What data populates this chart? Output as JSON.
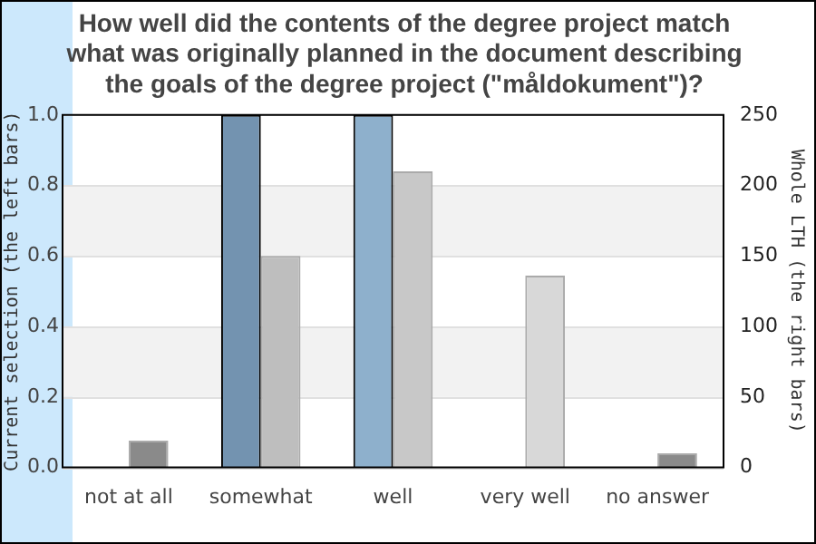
{
  "chart_data": {
    "type": "bar",
    "title": "How well did the contents of the degree project match what was originally planned in the document describing the goals of the degree project (\"måldokument\")?",
    "ylabel": "Current selection (the left bars)",
    "y2label": "Whole LTH (the right bars)",
    "categories": [
      "not at all",
      "somewhat",
      "well",
      "very well",
      "no answer"
    ],
    "series": [
      {
        "colors": [
          "#7393b0",
          "#7393b0",
          "#8eb0cc",
          "#8eb0cc",
          "#8eb0cc"
        ],
        "values": [
          null,
          1.0,
          1.0,
          null,
          null
        ]
      },
      {
        "axis": "y2",
        "colors": [
          "#8a8a8a",
          "#bebebe",
          "#c8c8c8",
          "#d8d8d8",
          "#8a8a8a"
        ],
        "values": [
          19,
          150,
          210,
          136,
          10
        ]
      }
    ],
    "ylim": [
      0,
      1
    ],
    "yticks": [
      {
        "value": 0,
        "label": "0.0"
      },
      0.2,
      0.4,
      0.6,
      0.8,
      {
        "value": 1,
        "label": "1.0"
      }
    ],
    "y2lim": [
      0,
      250
    ],
    "y2ticks": [
      0,
      50,
      100,
      150,
      200,
      250
    ],
    "bands": [
      {
        "axis": "y",
        "from": 0.2,
        "to": 0.4,
        "color": "#f2f2f2"
      },
      {
        "axis": "y",
        "from": 0.6,
        "to": 0.8,
        "color": "#f2f2f2"
      }
    ],
    "grid": "y",
    "legend": false
  }
}
